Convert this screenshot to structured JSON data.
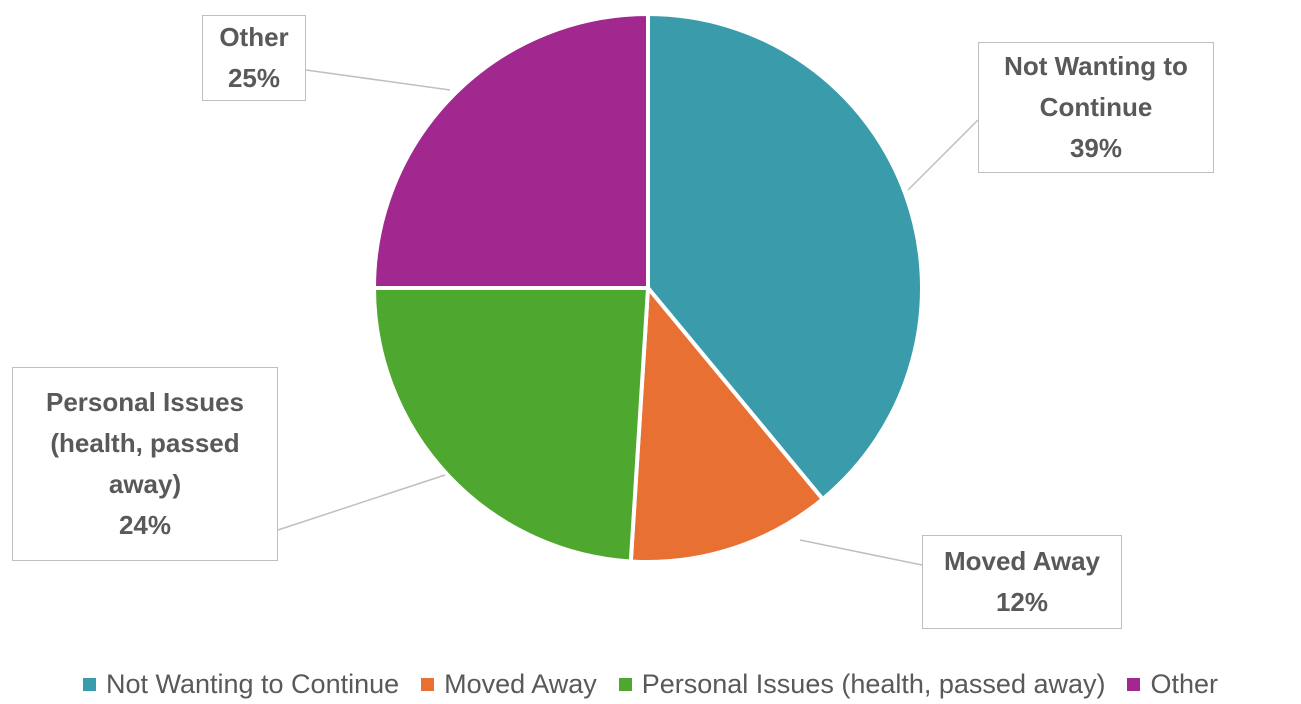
{
  "chart_data": {
    "type": "pie",
    "categories": [
      "Not Wanting to Continue",
      "Moved Away",
      "Personal Issues (health, passed away)",
      "Other"
    ],
    "values": [
      39,
      12,
      24,
      25
    ],
    "value_labels": [
      "39%",
      "12%",
      "24%",
      "25%"
    ],
    "colors": [
      "#3a9baa",
      "#e87033",
      "#4ea72e",
      "#a0288f"
    ],
    "legend": "bottom"
  }
}
